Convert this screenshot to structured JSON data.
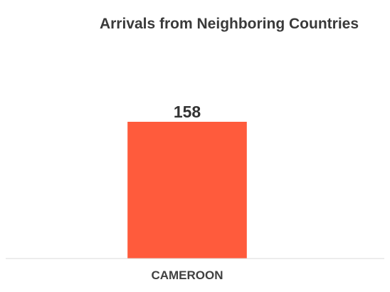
{
  "chart_data": {
    "type": "bar",
    "title": "Arrivals from Neighboring Countries",
    "categories": [
      "CAMEROON"
    ],
    "values": [
      158
    ],
    "xlabel": "",
    "ylabel": "",
    "ylim": [
      0,
      158
    ],
    "grid": false,
    "legend": "none",
    "bar_color": "#ff5b3c",
    "axis_color": "#d9d9d9"
  }
}
